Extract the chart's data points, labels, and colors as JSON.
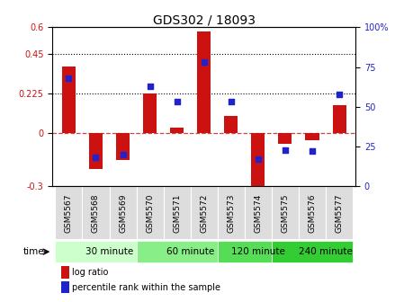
{
  "title": "GDS302 / 18093",
  "samples": [
    "GSM5567",
    "GSM5568",
    "GSM5569",
    "GSM5570",
    "GSM5571",
    "GSM5572",
    "GSM5573",
    "GSM5574",
    "GSM5575",
    "GSM5576",
    "GSM5577"
  ],
  "log_ratio": [
    0.38,
    -0.2,
    -0.15,
    0.225,
    0.03,
    0.575,
    0.1,
    -0.32,
    -0.06,
    -0.04,
    0.16
  ],
  "percentile": [
    68,
    18,
    20,
    63,
    53,
    78,
    53,
    17,
    23,
    22,
    58
  ],
  "ylim_left": [
    -0.3,
    0.6
  ],
  "ylim_right": [
    0,
    100
  ],
  "yticks_left": [
    -0.3,
    0.0,
    0.225,
    0.45,
    0.6
  ],
  "yticks_right": [
    0,
    25,
    50,
    75,
    100
  ],
  "hlines": [
    0.225,
    0.45
  ],
  "bar_color": "#cc1111",
  "dot_color": "#2222cc",
  "zero_line_color": "#cc4444",
  "time_groups": [
    {
      "label": "30 minute",
      "start": 0,
      "end": 3,
      "color": "#ccffcc"
    },
    {
      "label": "60 minute",
      "start": 3,
      "end": 6,
      "color": "#88ee88"
    },
    {
      "label": "120 minute",
      "start": 6,
      "end": 8,
      "color": "#55dd55"
    },
    {
      "label": "240 minute",
      "start": 8,
      "end": 11,
      "color": "#33cc33"
    }
  ],
  "legend_log_ratio": "log ratio",
  "legend_percentile": "percentile rank within the sample",
  "xlabel_time": "time",
  "background_color": "#ffffff",
  "plot_bg": "#ffffff",
  "sample_box_color": "#dddddd",
  "title_fontsize": 10,
  "bar_width": 0.5
}
